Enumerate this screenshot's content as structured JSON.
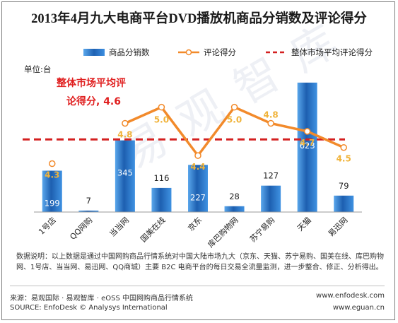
{
  "chart_data": {
    "type": "bar+line",
    "title": "2013年4月九大电商平台DVD播放机商品分销数及评论得分",
    "unit_label": "单位:台",
    "categories": [
      "1号店",
      "QQ网购",
      "当当网",
      "国美在线",
      "京东",
      "库巴购物网",
      "苏宁易购",
      "天猫",
      "易迅网"
    ],
    "series": [
      {
        "name": "商品分销数",
        "type": "bar",
        "color": "#2e75c0",
        "values": [
          199,
          7,
          345,
          116,
          227,
          28,
          127,
          623,
          79
        ]
      },
      {
        "name": "评论得分",
        "type": "line",
        "color": "#f28a2b",
        "values": [
          4.3,
          null,
          4.8,
          5.0,
          4.4,
          5.0,
          4.8,
          4.7,
          4.5
        ]
      },
      {
        "name": "整体市场平均评论得分",
        "type": "reference_line",
        "color": "#d42020",
        "value": 4.6
      }
    ],
    "avg_annotation_line1": "整体市场平均评",
    "avg_annotation_line2": "论得分, 4.6",
    "bar_ylim": [
      0,
      660
    ],
    "score_ylim": [
      3.7,
      5.4
    ],
    "grid": false,
    "legend_position": "top"
  },
  "notes": {
    "description": "数据说明：以上数据是通过中国网购商品行情系统对中国大陆市场九大（京东、天猫、苏宁易购、国美在线、库巴购物网、1号店、当当网、易迅网、QQ商城）主要 B2C 电商平台的每日交易全流量监测，进一步整合、修正、分析得出。",
    "source_cn": "来源：易观国际 · 易观智库 · eOSS 中国网购商品行情系统",
    "source_en": "SOURCE: EnfoDesk © Analysys International",
    "url1": "www.enfodesk.com",
    "url2": "www.eguan.cn",
    "watermark": "易观智库"
  }
}
